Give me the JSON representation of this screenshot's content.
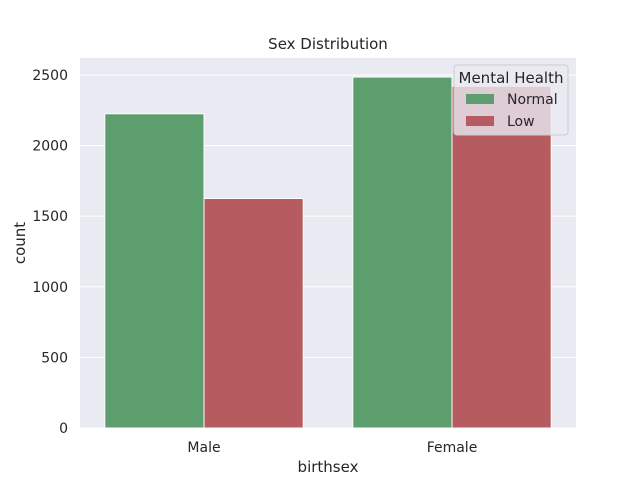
{
  "chart_data": {
    "type": "bar",
    "title": "Sex Distribution",
    "xlabel": "birthsex",
    "ylabel": "count",
    "categories": [
      "Male",
      "Female"
    ],
    "series": [
      {
        "name": "Normal",
        "values": [
          2225,
          2485
        ],
        "color": "#5c9e6e"
      },
      {
        "name": "Low",
        "values": [
          1625,
          2420
        ],
        "color": "#b65c61"
      }
    ],
    "ylim": [
      0,
      2620
    ],
    "yticks": [
      0,
      500,
      1000,
      1500,
      2000,
      2500
    ],
    "legend": {
      "title": "Mental Health",
      "position": "top-right"
    },
    "grid": true,
    "background": "#eaeaf2",
    "grid_color": "#ffffff"
  }
}
